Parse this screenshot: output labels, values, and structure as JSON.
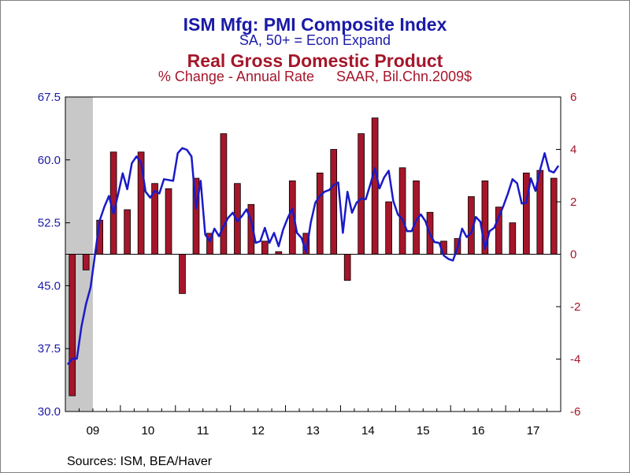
{
  "titles": {
    "title1": "ISM Mfg: PMI Composite Index",
    "subtitle1": "SA, 50+ = Econ Expand",
    "title2": "Real Gross Domestic Product",
    "subtitle2_left": "% Change - Annual Rate",
    "subtitle2_right": "SAAR, Bil.Chn.2009$"
  },
  "sources": "Sources:  ISM, BEA/Haver",
  "colors": {
    "pmi_line": "#1a1ac8",
    "gdp_bar": "#a5162a",
    "left_axis_text": "#1a1aa8",
    "right_axis_text": "#a5162a",
    "recession_shade": "#c8c8c8"
  },
  "chart_data": {
    "type": "bar+line",
    "x_axis": {
      "tick_labels": [
        "09",
        "10",
        "11",
        "12",
        "13",
        "14",
        "15",
        "16",
        "17"
      ],
      "range": [
        "2009-01",
        "2017-12"
      ]
    },
    "left_axis": {
      "ticks": [
        "67.5",
        "60.0",
        "52.5",
        "45.0",
        "37.5",
        "30.0"
      ],
      "ylim": [
        30,
        67.5
      ]
    },
    "right_axis": {
      "ticks": [
        "6",
        "4",
        "2",
        "0",
        "-2",
        "-4",
        "-6"
      ],
      "ylim": [
        -6,
        6
      ]
    },
    "recession_shading": [
      "2009-01",
      "2009-06"
    ],
    "series": [
      {
        "name": "Real Gross Domestic Product",
        "kind": "bar",
        "axis": "right",
        "quarters": [
          "2009Q1",
          "2009Q2",
          "2009Q3",
          "2009Q4",
          "2010Q1",
          "2010Q2",
          "2010Q3",
          "2010Q4",
          "2011Q1",
          "2011Q2",
          "2011Q3",
          "2011Q4",
          "2012Q1",
          "2012Q2",
          "2012Q3",
          "2012Q4",
          "2013Q1",
          "2013Q2",
          "2013Q3",
          "2013Q4",
          "2014Q1",
          "2014Q2",
          "2014Q3",
          "2014Q4",
          "2015Q1",
          "2015Q2",
          "2015Q3",
          "2015Q4",
          "2016Q1",
          "2016Q2",
          "2016Q3",
          "2016Q4",
          "2017Q1",
          "2017Q2",
          "2017Q3",
          "2017Q4"
        ],
        "values": [
          -5.4,
          -0.6,
          1.3,
          3.9,
          1.7,
          3.9,
          2.7,
          2.5,
          -1.5,
          2.9,
          0.8,
          4.6,
          2.7,
          1.9,
          0.5,
          0.1,
          2.8,
          0.8,
          3.1,
          4.0,
          -1.0,
          4.6,
          5.2,
          2.0,
          3.3,
          2.8,
          1.6,
          0.5,
          0.6,
          2.2,
          2.8,
          1.8,
          1.2,
          3.1,
          3.2,
          2.9
        ]
      },
      {
        "name": "ISM Mfg: PMI Composite Index",
        "kind": "line",
        "axis": "left",
        "start": "2009-01",
        "values": [
          35.6,
          36.3,
          36.3,
          40.1,
          42.8,
          44.8,
          48.9,
          52.8,
          54.4,
          55.7,
          53.6,
          55.9,
          58.4,
          56.5,
          59.6,
          60.4,
          59.7,
          56.2,
          55.5,
          56.3,
          56.0,
          57.7,
          57.6,
          57.5,
          60.8,
          61.4,
          61.2,
          60.4,
          54.2,
          57.5,
          51.1,
          50.3,
          51.8,
          50.9,
          52.1,
          53.1,
          53.7,
          52.7,
          53.3,
          54.1,
          52.8,
          50.1,
          50.3,
          51.9,
          50.1,
          51.3,
          49.7,
          51.7,
          53.1,
          54.2,
          51.3,
          50.7,
          49.0,
          52.5,
          54.9,
          55.7,
          56.2,
          56.4,
          57.0,
          57.3,
          51.3,
          56.2,
          53.7,
          54.9,
          55.4,
          55.3,
          57.1,
          59.0,
          56.6,
          57.9,
          58.7,
          55.1,
          53.5,
          52.9,
          51.5,
          51.5,
          52.8,
          53.5,
          52.7,
          51.1,
          50.2,
          50.1,
          48.6,
          48.2,
          48.0,
          49.5,
          51.8,
          50.8,
          51.3,
          53.2,
          52.6,
          49.4,
          51.5,
          51.9,
          53.2,
          54.5,
          56.0,
          57.7,
          57.2,
          54.8,
          54.9,
          57.8,
          56.3,
          58.8,
          60.8,
          58.7,
          58.5,
          59.3
        ]
      }
    ]
  }
}
